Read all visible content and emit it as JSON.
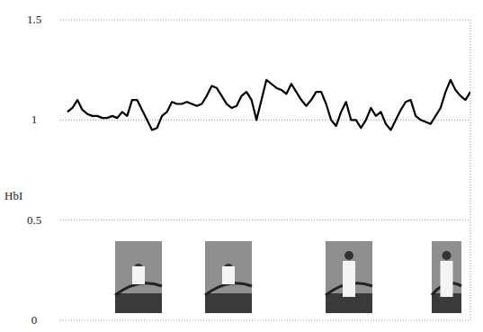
{
  "chart_data": {
    "type": "line",
    "y_label": "HbI",
    "x": [
      0,
      1,
      2,
      3,
      4,
      5,
      6,
      7,
      8,
      9,
      10,
      11,
      12,
      13,
      14,
      15,
      16,
      17,
      18,
      19,
      20,
      21,
      22,
      23,
      24,
      25,
      26,
      27,
      28,
      29,
      30,
      31,
      32,
      33,
      34,
      35,
      36,
      37,
      38,
      39,
      40,
      41,
      42,
      43,
      44,
      45,
      46,
      47,
      48,
      49,
      50,
      51,
      52,
      53,
      54,
      55,
      56,
      57,
      58,
      59,
      60,
      61,
      62,
      63,
      64,
      65,
      66,
      67,
      68,
      69,
      70,
      71,
      72,
      73,
      74,
      75,
      76,
      77,
      78,
      79,
      80,
      81
    ],
    "values": [
      1.04,
      1.06,
      1.1,
      1.05,
      1.03,
      1.02,
      1.02,
      1.01,
      1.01,
      1.02,
      1.01,
      1.04,
      1.02,
      1.1,
      1.1,
      1.05,
      1.0,
      0.95,
      0.96,
      1.02,
      1.04,
      1.09,
      1.08,
      1.08,
      1.09,
      1.08,
      1.07,
      1.08,
      1.12,
      1.17,
      1.16,
      1.12,
      1.08,
      1.06,
      1.07,
      1.12,
      1.14,
      1.1,
      1.0,
      1.1,
      1.2,
      1.18,
      1.16,
      1.15,
      1.13,
      1.18,
      1.14,
      1.1,
      1.07,
      1.1,
      1.14,
      1.14,
      1.08,
      1.0,
      0.97,
      1.04,
      1.09,
      1.0,
      1.0,
      0.96,
      1.0,
      1.06,
      1.02,
      1.04,
      0.98,
      0.95,
      1.0,
      1.05,
      1.09,
      1.1,
      1.02,
      1.0,
      0.99,
      0.98,
      1.02,
      1.06,
      1.14,
      1.2,
      1.15,
      1.12,
      1.1,
      1.14
    ],
    "color": "#000000",
    "xlim": [
      0,
      81
    ],
    "ylim": [
      0,
      1.5
    ],
    "yticks": [
      0,
      0.5,
      1,
      1.5
    ],
    "grid": true,
    "tick_labels": "y"
  }
}
